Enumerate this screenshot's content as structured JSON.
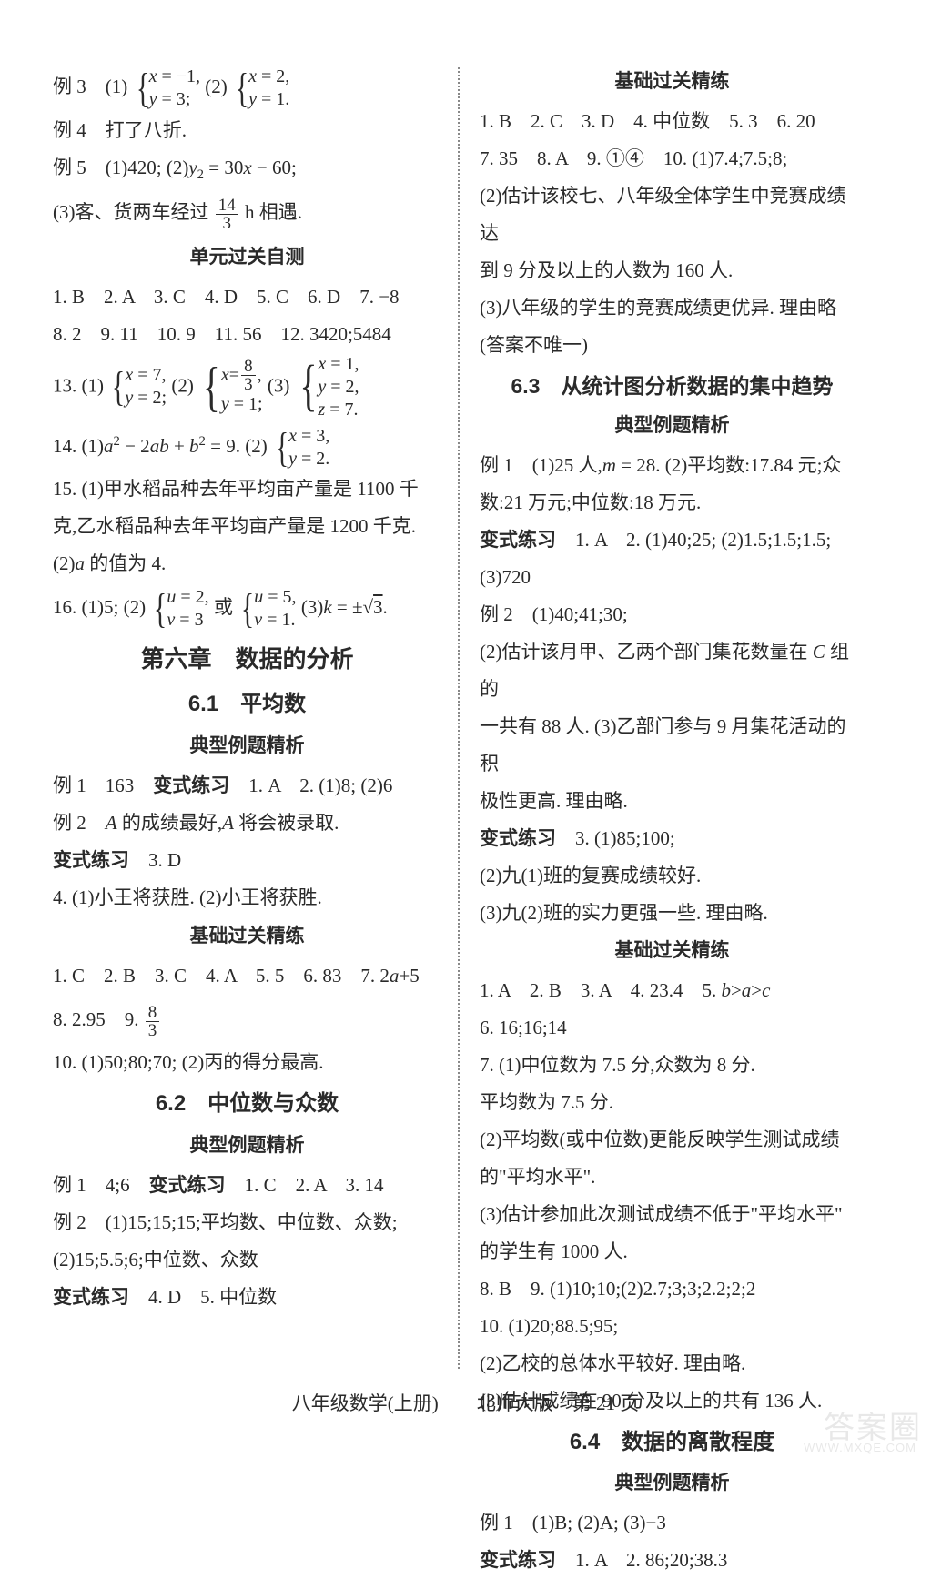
{
  "left": {
    "l1a": "例 3　(1)",
    "l1_b1_a": "x = −1,",
    "l1_b1_b": "y = 3;",
    "l1b": "(2)",
    "l1_b2_a": "x = 2,",
    "l1_b2_b": "y = 1.",
    "l2": "例 4　打了八折.",
    "l3": "例 5　(1)420; (2)y₂ = 30x − 60;",
    "l4a": "(3)客、货两车经过",
    "l4_num": "14",
    "l4_den": "3",
    "l4b": "h 相遇.",
    "t1": "单元过关自测",
    "l5": "1. B　2. A　3. C　4. D　5. C　6. D　7. −8",
    "l6": "8. 2　9. 11　10. 9　11. 56　12. 3420;5484",
    "l7a": "13. (1)",
    "l7_b1_a": "x = 7,",
    "l7_b1_b": "y = 2;",
    "l7b": "(2)",
    "l7_b2_a_pre": "x = ",
    "l7_b2_a_num": "8",
    "l7_b2_a_den": "3",
    "l7_b2_a_post": ",",
    "l7_b2_b": "y = 1;",
    "l7c": "(3)",
    "l7_b3_a": "x = 1,",
    "l7_b3_b": "y = 2,",
    "l7_b3_c": "z = 7.",
    "l8a": "14. (1)a² − 2ab + b² = 9. (2)",
    "l8_b_a": "x = 3,",
    "l8_b_b": "y = 2.",
    "l9": "15. (1)甲水稻品种去年平均亩产量是 1100 千",
    "l10": "克,乙水稻品种去年平均亩产量是 1200 千克.",
    "l11": "(2)a 的值为 4.",
    "l12a": "16. (1)5; (2)",
    "l12_b1_a": "u = 2,",
    "l12_b1_b": "v = 3",
    "l12b": "或",
    "l12_b2_a": "u = 5,",
    "l12_b2_b": "v = 1.",
    "l12c": "(3)k = ±√3.",
    "t2": "第六章　数据的分析",
    "t3": "6.1　平均数",
    "t4": "典型例题精析",
    "l13a": "例 1　163　",
    "l13b": "变式练习",
    "l13c": "　1. A　2. (1)8; (2)6",
    "l14": "例 2　A 的成绩最好,A 将会被录取.",
    "l15a": "变式练习",
    "l15b": "　3. D",
    "l16": "4. (1)小王将获胜. (2)小王将获胜.",
    "t5": "基础过关精练",
    "l17": "1. C　2. B　3. C　4. A　5. 5　6. 83　7. 2a+5",
    "l18a": "8. 2.95　9. ",
    "l18_num": "8",
    "l18_den": "3",
    "l19": "10. (1)50;80;70; (2)丙的得分最高.",
    "t6": "6.2　中位数与众数",
    "t7": "典型例题精析",
    "l20a": "例 1　4;6　",
    "l20b": "变式练习",
    "l20c": "　1. C　2. A　3. 14",
    "l21": "例 2　(1)15;15;15;平均数、中位数、众数;",
    "l22": "(2)15;5.5;6;中位数、众数",
    "l23a": "变式练习",
    "l23b": "　4. D　5. 中位数"
  },
  "right": {
    "t1": "基础过关精练",
    "l1": "1. B　2. C　3. D　4. 中位数　5. 3　6. 20",
    "l2": "7. 35　8. A　9. ①④　10. (1)7.4;7.5;8;",
    "l3": "(2)估计该校七、八年级全体学生中竞赛成绩达",
    "l4": "到 9 分及以上的人数为 160 人.",
    "l5": "(3)八年级的学生的竞赛成绩更优异. 理由略",
    "l6": "(答案不唯一)",
    "t2": "6.3　从统计图分析数据的集中趋势",
    "t3": "典型例题精析",
    "l7": "例 1　(1)25 人,m = 28. (2)平均数:17.84 元;众",
    "l8": "数:21 万元;中位数:18 万元.",
    "l9a": "变式练习",
    "l9b": "　1. A　2. (1)40;25; (2)1.5;1.5;1.5;",
    "l10": "(3)720",
    "l11": "例 2　(1)40;41;30;",
    "l12": "(2)估计该月甲、乙两个部门集花数量在 C 组的",
    "l13": "一共有 88 人. (3)乙部门参与 9 月集花活动的积",
    "l14": "极性更高. 理由略.",
    "l15a": "变式练习",
    "l15b": "　3. (1)85;100;",
    "l16": "(2)九(1)班的复赛成绩较好.",
    "l17": "(3)九(2)班的实力更强一些. 理由略.",
    "t4": "基础过关精练",
    "l18": "1. A　2. B　3. A　4. 23.4　5. b>a>c",
    "l19": "6. 16;16;14",
    "l20": "7. (1)中位数为 7.5 分,众数为 8 分.",
    "l21": "平均数为 7.5 分.",
    "l22": "(2)平均数(或中位数)更能反映学生测试成绩",
    "l23": "的\"平均水平\".",
    "l24": "(3)估计参加此次测试成绩不低于\"平均水平\"",
    "l25": "的学生有 1000 人.",
    "l26": "8. B　9. (1)10;10;(2)2.7;3;3;2.2;2;2",
    "l27": "10. (1)20;88.5;95;",
    "l28": "(2)乙校的总体水平较好. 理由略.",
    "l29": "(3)估计成绩在 90 分及以上的共有 136 人.",
    "t5": "6.4　数据的离散程度",
    "t6": "典型例题精析",
    "l30": "例 1　(1)B; (2)A; (3)−3",
    "l31a": "变式练习",
    "l31b": "　1. A　2. 86;20;38.3"
  },
  "footer": "八年级数学(上册)　　北师大版　第 21 页",
  "wm1": "答案圈",
  "wm2": "WWW.MXQE.COM"
}
